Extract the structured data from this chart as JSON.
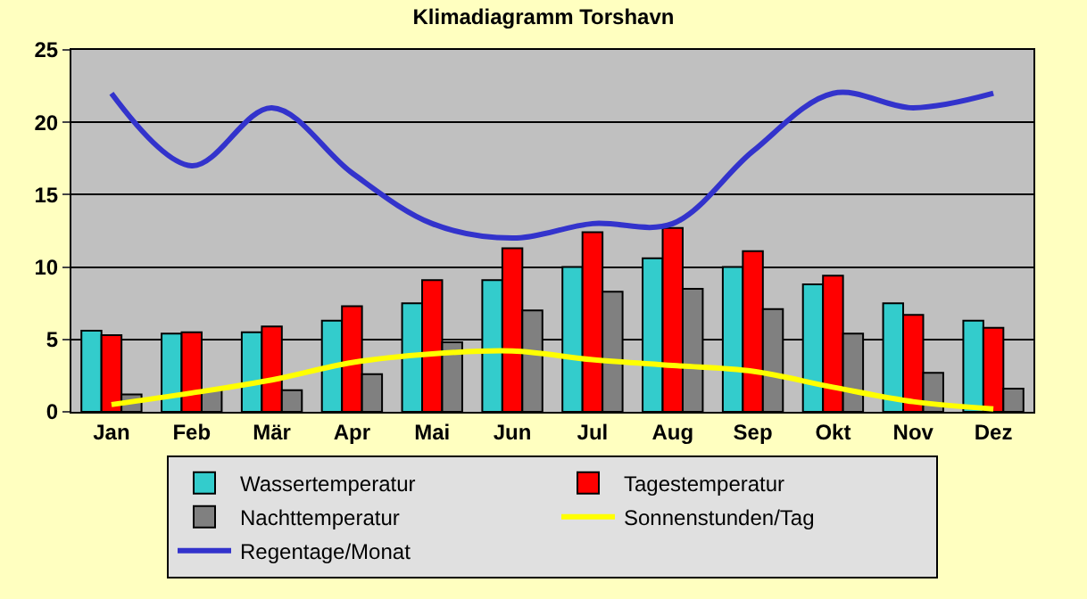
{
  "chart_data": {
    "type": "bar",
    "title": "Klimadiagramm Torshavn",
    "categories": [
      "Jan",
      "Feb",
      "Mär",
      "Apr",
      "Mai",
      "Jun",
      "Jul",
      "Aug",
      "Sep",
      "Okt",
      "Nov",
      "Dez"
    ],
    "series": [
      {
        "name": "Wassertemperatur",
        "color": "#33cccc",
        "values": [
          5.6,
          5.4,
          5.5,
          6.3,
          7.5,
          9.1,
          10.0,
          10.6,
          10.0,
          8.8,
          7.5,
          6.3
        ]
      },
      {
        "name": "Tagestemperatur",
        "color": "#ff0000",
        "values": [
          5.3,
          5.5,
          5.9,
          7.3,
          9.1,
          11.3,
          12.4,
          12.7,
          11.1,
          9.4,
          6.7,
          5.8
        ]
      },
      {
        "name": "Nachttemperatur",
        "color": "#808080",
        "values": [
          1.2,
          1.5,
          1.5,
          2.6,
          4.8,
          7.0,
          8.3,
          8.5,
          7.1,
          5.4,
          2.7,
          1.6
        ]
      },
      {
        "name": "Sonnenstunden/Tag",
        "color": "#ffff00",
        "type": "line",
        "values": [
          0.5,
          1.3,
          2.2,
          3.4,
          4.0,
          4.2,
          3.6,
          3.2,
          2.8,
          1.7,
          0.7,
          0.2
        ]
      },
      {
        "name": "Regentage/Monat",
        "color": "#3333cc",
        "type": "line",
        "values": [
          22,
          17,
          21,
          16.5,
          13,
          12,
          13,
          13,
          18,
          22,
          21,
          22
        ]
      }
    ],
    "ylim": [
      0,
      25
    ],
    "yticks": [
      0,
      5,
      10,
      15,
      20,
      25
    ],
    "grid": "y",
    "legend": "bottom",
    "marker": "none",
    "line_style": "solid"
  }
}
